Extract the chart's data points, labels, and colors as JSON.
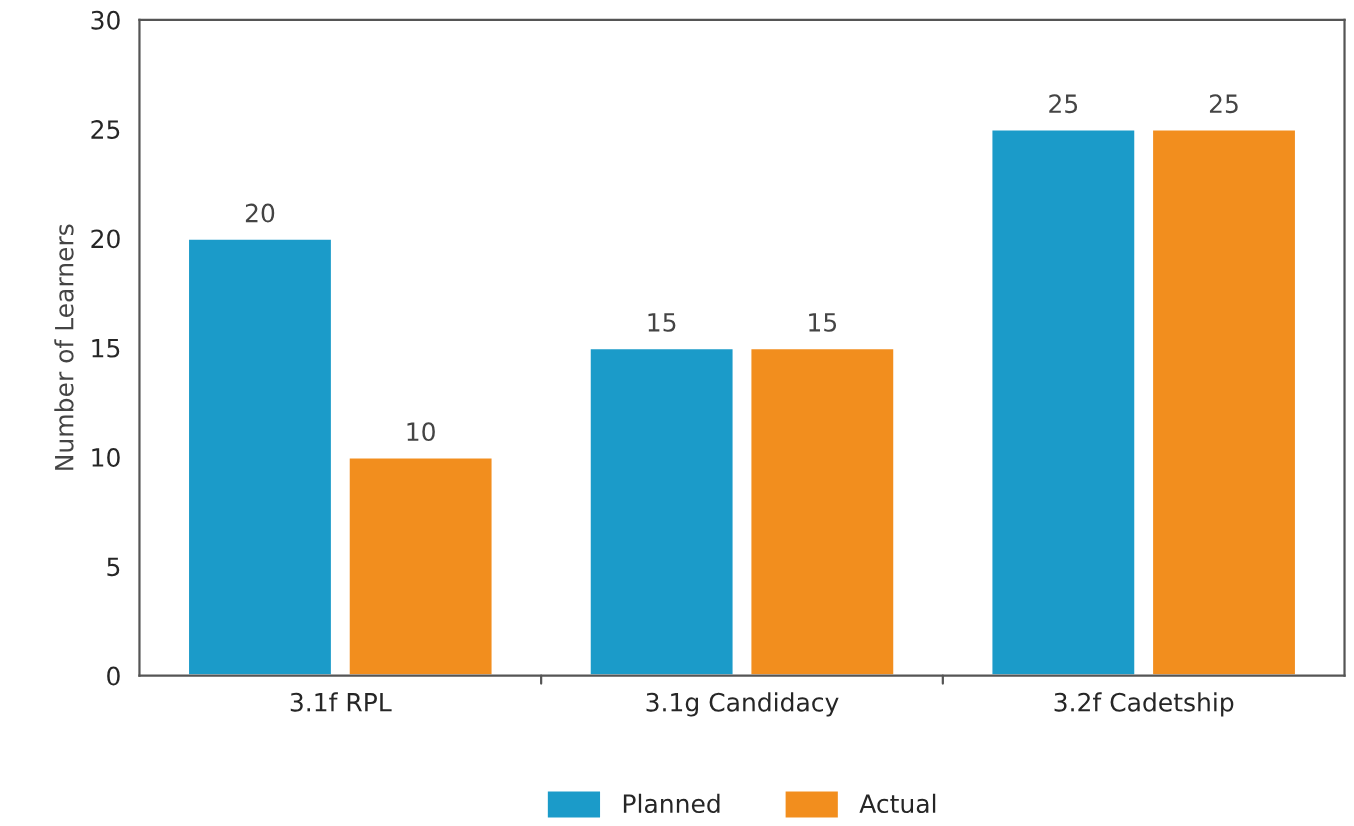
{
  "chart_data": {
    "type": "bar",
    "ylabel": "Number of Learners",
    "categories": [
      "3.1f RPL",
      "3.1g Candidacy",
      "3.2f Cadetship"
    ],
    "series": [
      {
        "name": "Planned",
        "color": "#1b9bc9",
        "values": [
          20,
          15,
          25
        ]
      },
      {
        "name": "Actual",
        "color": "#f28e1e",
        "values": [
          10,
          15,
          25
        ]
      }
    ],
    "ylim": [
      0,
      30
    ],
    "yticks": [
      0,
      5,
      10,
      15,
      20,
      25,
      30
    ],
    "data_labels": true,
    "grid": false,
    "legend": "bottom"
  }
}
